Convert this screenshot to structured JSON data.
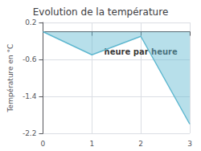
{
  "chart_data": {
    "type": "line",
    "title": "Evolution de la température",
    "ylabel": "Température en °C",
    "x": [
      0,
      1,
      2,
      3
    ],
    "values": [
      0.0,
      -0.5,
      -0.1,
      -2.0
    ],
    "color": "#60b8d0",
    "xlim": [
      0,
      3
    ],
    "ylim": [
      -2.2,
      0.2
    ],
    "xticks": [
      0,
      1,
      2,
      3
    ],
    "yticks": [
      0.2,
      -0.6,
      -1.4,
      -2.2
    ],
    "grid": true,
    "annotations": [
      {
        "text": "heure par heure",
        "x": 2.0,
        "y": -0.35
      }
    ]
  }
}
